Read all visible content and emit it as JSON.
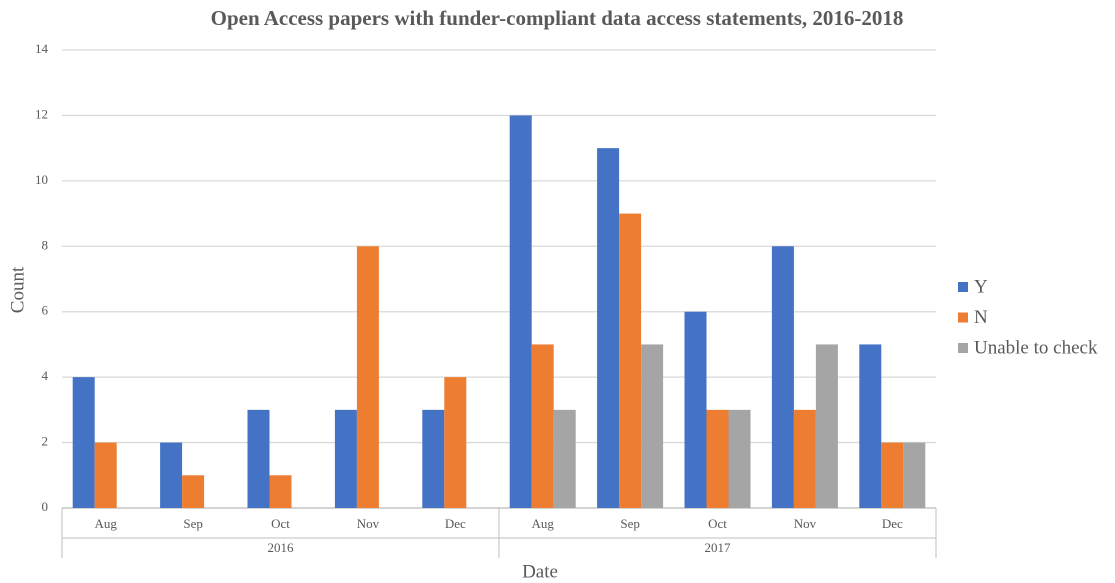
{
  "chart_data": {
    "type": "bar",
    "title": "Open Access papers with funder-compliant data access statements, 2016-2018",
    "x_label": "Date",
    "y_label": "Count",
    "groups": [
      {
        "label": "2016",
        "categories": [
          "Aug",
          "Sep",
          "Oct",
          "Nov",
          "Dec"
        ]
      },
      {
        "label": "2017",
        "categories": [
          "Aug",
          "Sep",
          "Oct",
          "Nov",
          "Dec"
        ]
      }
    ],
    "series": [
      {
        "name": "Y",
        "color": "#4472c4",
        "values": [
          4,
          2,
          3,
          3,
          3,
          12,
          11,
          6,
          8,
          5
        ]
      },
      {
        "name": "N",
        "color": "#ed7d31",
        "values": [
          2,
          1,
          1,
          8,
          4,
          5,
          9,
          3,
          3,
          2
        ]
      },
      {
        "name": "Unable to check",
        "color": "#a5a5a5",
        "values": [
          null,
          null,
          null,
          null,
          null,
          3,
          5,
          3,
          5,
          2
        ]
      }
    ],
    "ylim": [
      0,
      14
    ],
    "yticks": [
      0,
      2,
      4,
      6,
      8,
      10,
      12,
      14
    ],
    "grid": true,
    "legend": "right"
  }
}
